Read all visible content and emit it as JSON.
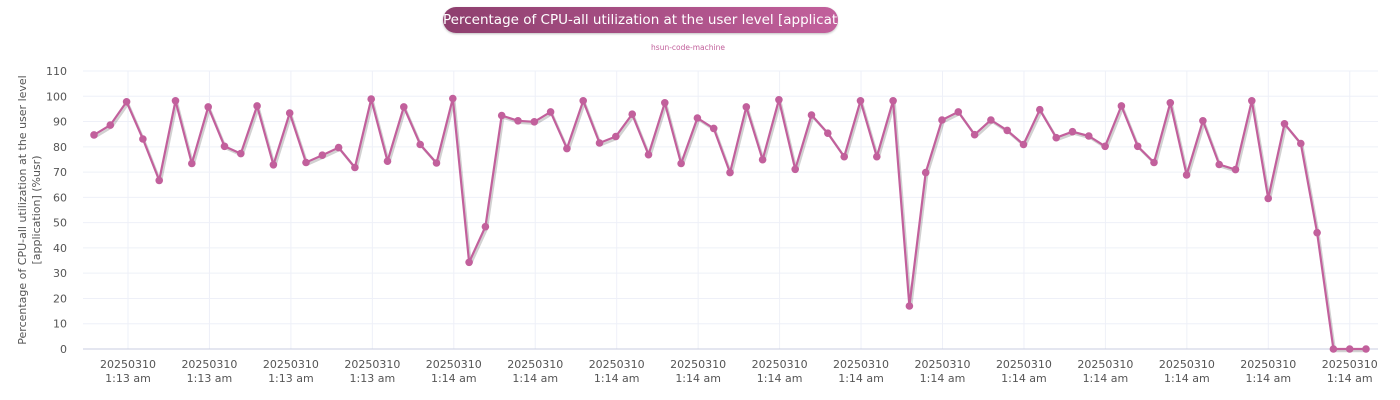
{
  "title": "Percentage of CPU-all utilization at the user level [application]",
  "subtitle": "hsun-code-machine",
  "colors": {
    "series": "#c2609c",
    "title_bg_start": "#8e3f6e",
    "title_bg_end": "#c2609c",
    "grid": "#eef0f8"
  },
  "chart_data": {
    "type": "line",
    "title": "Percentage of CPU-all utilization at the user level [application]",
    "subtitle": "hsun-code-machine",
    "ylabel": [
      "Percentage of CPU-all utilization at the user level",
      "[application] (%usr)"
    ],
    "ylim": [
      0,
      110
    ],
    "yticks": [
      0,
      10,
      20,
      30,
      40,
      50,
      60,
      70,
      80,
      90,
      100,
      110
    ],
    "grid": true,
    "legend": "none",
    "xtick_labels": [
      {
        "date": "20250310",
        "time": "1:13 am"
      },
      {
        "date": "20250310",
        "time": "1:13 am"
      },
      {
        "date": "20250310",
        "time": "1:13 am"
      },
      {
        "date": "20250310",
        "time": "1:13 am"
      },
      {
        "date": "20250310",
        "time": "1:14 am"
      },
      {
        "date": "20250310",
        "time": "1:14 am"
      },
      {
        "date": "20250310",
        "time": "1:14 am"
      },
      {
        "date": "20250310",
        "time": "1:14 am"
      },
      {
        "date": "20250310",
        "time": "1:14 am"
      },
      {
        "date": "20250310",
        "time": "1:14 am"
      },
      {
        "date": "20250310",
        "time": "1:14 am"
      },
      {
        "date": "20250310",
        "time": "1:14 am"
      },
      {
        "date": "20250310",
        "time": "1:14 am"
      },
      {
        "date": "20250310",
        "time": "1:14 am"
      },
      {
        "date": "20250310",
        "time": "1:14 am"
      },
      {
        "date": "20250310",
        "time": "1:14 am"
      }
    ],
    "series": [
      {
        "values": [
          84.7,
          88.6,
          97.8,
          83.1,
          66.7,
          98.2,
          73.4,
          95.8,
          80.2,
          77.3,
          96.2,
          72.9,
          93.4,
          73.8,
          76.7,
          79.7,
          71.8,
          98.9,
          74.3,
          95.8,
          80.9,
          73.6,
          99.1,
          34.3,
          48.4,
          92.4,
          90.3,
          89.9,
          93.8,
          79.3,
          98.2,
          81.5,
          84.1,
          92.9,
          76.9,
          97.4,
          73.4,
          91.4,
          87.3,
          69.8,
          95.8,
          74.9,
          98.6,
          71.1,
          92.6,
          85.4,
          76.1,
          98.2,
          76.1,
          98.2,
          17.0,
          69.8,
          90.6,
          93.8,
          84.8,
          90.6,
          86.5,
          80.9,
          94.7,
          83.6,
          86.0,
          84.3,
          80.2,
          96.2,
          80.2,
          73.8,
          97.4,
          68.9,
          90.3,
          73.0,
          71.0,
          98.2,
          59.6,
          89.1,
          81.3,
          46.0,
          0,
          0,
          0
        ]
      }
    ]
  }
}
